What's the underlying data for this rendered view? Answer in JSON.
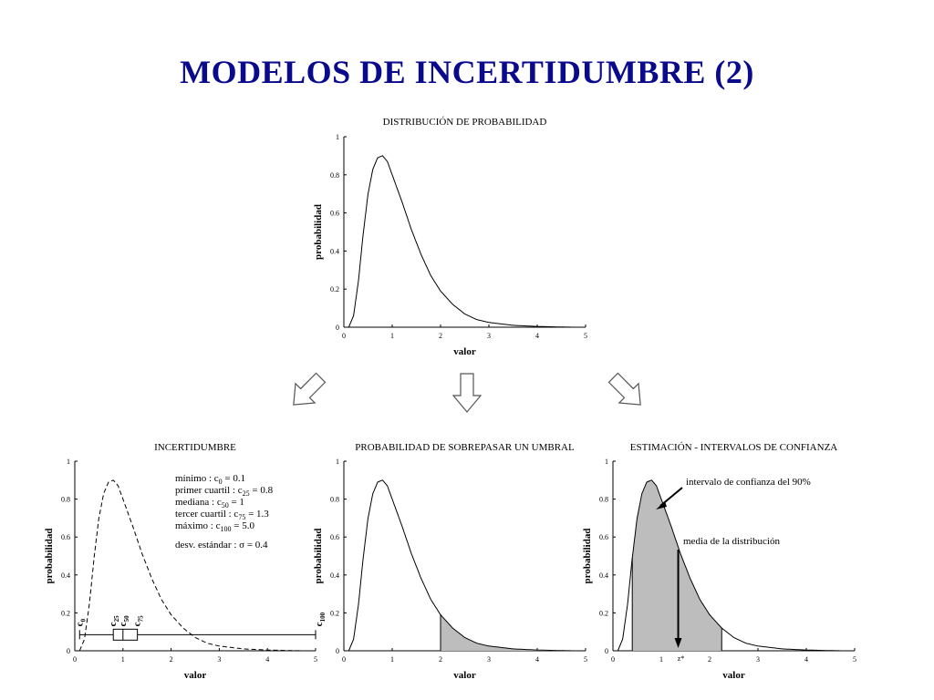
{
  "page_title": "MODELOS DE INCERTIDUMBRE (2)",
  "chart_data": [
    {
      "type": "line",
      "title": "DISTRIBUCIÓN DE PROBABILIDAD",
      "xlabel": "valor",
      "ylabel": "probabilidad",
      "xlim": [
        0,
        5
      ],
      "ylim": [
        0,
        1
      ],
      "xticks": [
        "0",
        "1",
        "2",
        "3",
        "4",
        "5"
      ],
      "yticks": [
        "0",
        "0.2",
        "0.4",
        "0.6",
        "0.8",
        "1"
      ],
      "series": [
        {
          "x": [
            0.1,
            0.2,
            0.3,
            0.4,
            0.5,
            0.6,
            0.7,
            0.8,
            0.9,
            1.0,
            1.2,
            1.4,
            1.6,
            1.8,
            2.0,
            2.25,
            2.5,
            2.75,
            3.0,
            3.5,
            4.0,
            4.5,
            4.75
          ],
          "y": [
            0.0,
            0.06,
            0.24,
            0.49,
            0.7,
            0.83,
            0.89,
            0.9,
            0.87,
            0.8,
            0.66,
            0.51,
            0.38,
            0.27,
            0.19,
            0.12,
            0.07,
            0.04,
            0.025,
            0.01,
            0.004,
            0.001,
            0.0
          ]
        }
      ]
    },
    {
      "type": "line",
      "title": "INCERTIDUMBRE",
      "xlabel": "valor",
      "ylabel": "probabilidad",
      "xlim": [
        0,
        5
      ],
      "ylim": [
        0,
        1
      ],
      "xticks": [
        "0",
        "1",
        "2",
        "3",
        "4",
        "5"
      ],
      "yticks": [
        "0",
        "0.2",
        "0.4",
        "0.6",
        "0.8",
        "1"
      ],
      "style": "dashed",
      "boxplot": {
        "min": 0.1,
        "q1": 0.8,
        "median": 1,
        "q3": 1.3,
        "max": 5.0,
        "y": 0.085
      },
      "box_labels": [
        {
          "base": "c",
          "sub": "0",
          "x": 0.1
        },
        {
          "base": "c",
          "sub": "25",
          "x": 0.8
        },
        {
          "base": "c",
          "sub": "50",
          "x": 1.0
        },
        {
          "base": "c",
          "sub": "75",
          "x": 1.3
        },
        {
          "base": "c",
          "sub": "100",
          "x": 5.0
        }
      ],
      "stats": [
        {
          "label": "mínimo : c",
          "sub": "0",
          "value": "= 0.1"
        },
        {
          "label": "primer cuartil : c",
          "sub": "25",
          "value": "= 0.8"
        },
        {
          "label": "mediana : c",
          "sub": "50",
          "value": "= 1"
        },
        {
          "label": "tercer cuartil : c",
          "sub": "75",
          "value": "= 1.3"
        },
        {
          "label": "máximo : c",
          "sub": "100",
          "value": "= 5.0"
        }
      ],
      "std_text": "desv. estándar : σ = 0.4"
    },
    {
      "type": "area",
      "title": "PROBABILIDAD DE SOBREPASAR UN UMBRAL",
      "xlabel": "valor",
      "ylabel": "probabilidad",
      "xlim": [
        0,
        5
      ],
      "ylim": [
        0,
        1
      ],
      "xticks": [
        "0",
        "1",
        "2",
        "3",
        "4",
        "5"
      ],
      "yticks": [
        "0",
        "0.2",
        "0.4",
        "0.6",
        "0.8",
        "1"
      ],
      "shaded_from": 2
    },
    {
      "type": "area",
      "title": "ESTIMACIÓN - INTERVALOS DE CONFIANZA",
      "xlabel": "valor",
      "ylabel": "probabilidad",
      "xlim": [
        0,
        5
      ],
      "ylim": [
        0,
        1
      ],
      "xticks": [
        "0",
        "1",
        "",
        "2",
        "3",
        "4",
        "5"
      ],
      "yticks": [
        "0",
        "0.2",
        "0.4",
        "0.6",
        "0.8",
        "1"
      ],
      "shaded_range": [
        0.4,
        2.25
      ],
      "annotations": {
        "interval": "intervalo de confianza del 90%",
        "mean": "media de la distribución",
        "zstar": "z*",
        "mean_x": 1.35
      }
    }
  ]
}
